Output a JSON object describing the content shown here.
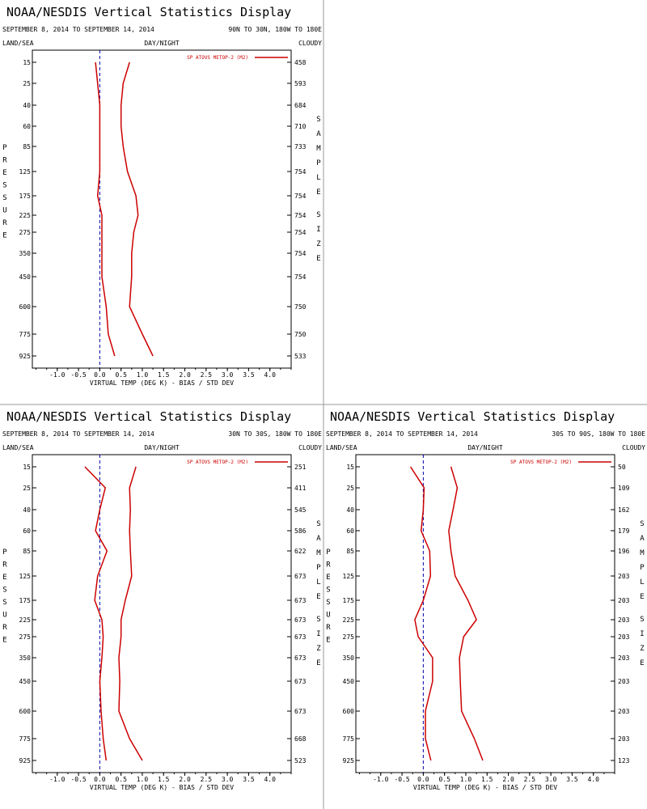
{
  "display_title": "NOAA/NESDIS Vertical Statistics Display",
  "colors": {
    "series": "#cc0000",
    "frame": "#000000",
    "zero_line": "#0000aa",
    "separator": "#999999"
  },
  "chart_data": [
    {
      "type": "line",
      "date_range": "SEPTEMBER 8, 2014 TO SEPTEMBER 14, 2014",
      "region": "90N TO 30N, 180W TO 180E",
      "left_header": "LAND/SEA",
      "center_header": "DAY/NIGHT",
      "right_header": "CLOUDY",
      "left_vertical_label": "PRESSURE",
      "right_vertical_label": "SAMPLE SIZE",
      "xlabel": "VIRTUAL TEMP (DEG K) - BIAS / STD DEV",
      "x_ticks": [
        "-1.0",
        "-0.5",
        "0.0",
        "0.5",
        "1.0",
        "1.5",
        "2.0",
        "2.5",
        "3.0",
        "3.5",
        "4.0"
      ],
      "xlim": [
        -1.5,
        4.5
      ],
      "pressure_levels": [
        "15",
        "25",
        "40",
        "60",
        "85",
        "125",
        "175",
        "225",
        "275",
        "350",
        "450",
        "600",
        "775",
        "925"
      ],
      "sample_sizes": [
        "458",
        "593",
        "684",
        "710",
        "733",
        "754",
        "754",
        "754",
        "754",
        "754",
        "754",
        "750",
        "750",
        "533"
      ],
      "legend": "SP ATOVS METOP-2 (M2)",
      "series": [
        {
          "name": "BIAS",
          "points": [
            [
              -0.1,
              15
            ],
            [
              0.0,
              40
            ],
            [
              0.0,
              125
            ],
            [
              -0.05,
              175
            ],
            [
              0.05,
              225
            ],
            [
              0.05,
              350
            ],
            [
              0.05,
              450
            ],
            [
              0.15,
              600
            ],
            [
              0.2,
              775
            ],
            [
              0.35,
              925
            ]
          ]
        },
        {
          "name": "STD DEV",
          "points": [
            [
              0.7,
              15
            ],
            [
              0.55,
              25
            ],
            [
              0.5,
              40
            ],
            [
              0.5,
              60
            ],
            [
              0.55,
              85
            ],
            [
              0.65,
              125
            ],
            [
              0.85,
              175
            ],
            [
              0.9,
              225
            ],
            [
              0.8,
              275
            ],
            [
              0.75,
              350
            ],
            [
              0.75,
              450
            ],
            [
              0.7,
              600
            ],
            [
              1.0,
              775
            ],
            [
              1.25,
              925
            ]
          ]
        }
      ]
    },
    {
      "type": "line",
      "date_range": "SEPTEMBER 8, 2014 TO SEPTEMBER 14, 2014",
      "region": "30N TO 30S, 180W TO 180E",
      "left_header": "LAND/SEA",
      "center_header": "DAY/NIGHT",
      "right_header": "CLOUDY",
      "left_vertical_label": "PRESSURE",
      "right_vertical_label": "SAMPLE SIZE",
      "xlabel": "VIRTUAL TEMP (DEG K) - BIAS / STD DEV",
      "x_ticks": [
        "-1.0",
        "-0.5",
        "0.0",
        "0.5",
        "1.0",
        "1.5",
        "2.0",
        "2.5",
        "3.0",
        "3.5",
        "4.0"
      ],
      "xlim": [
        -1.5,
        4.5
      ],
      "pressure_levels": [
        "15",
        "25",
        "40",
        "60",
        "85",
        "125",
        "175",
        "225",
        "275",
        "350",
        "450",
        "600",
        "775",
        "925"
      ],
      "sample_sizes": [
        "251",
        "411",
        "545",
        "586",
        "622",
        "673",
        "673",
        "673",
        "673",
        "673",
        "673",
        "673",
        "668",
        "523"
      ],
      "legend": "SP ATOVS METOP-2 (M2)",
      "series": [
        {
          "name": "BIAS",
          "points": [
            [
              -0.35,
              15
            ],
            [
              0.13,
              25
            ],
            [
              0.0,
              40
            ],
            [
              -0.1,
              60
            ],
            [
              0.17,
              85
            ],
            [
              -0.05,
              125
            ],
            [
              -0.12,
              175
            ],
            [
              0.05,
              225
            ],
            [
              0.08,
              275
            ],
            [
              0.05,
              350
            ],
            [
              0.0,
              450
            ],
            [
              0.03,
              600
            ],
            [
              0.08,
              775
            ],
            [
              0.15,
              925
            ]
          ]
        },
        {
          "name": "STD DEV",
          "points": [
            [
              0.85,
              15
            ],
            [
              0.7,
              25
            ],
            [
              0.72,
              40
            ],
            [
              0.7,
              60
            ],
            [
              0.72,
              85
            ],
            [
              0.75,
              125
            ],
            [
              0.6,
              175
            ],
            [
              0.5,
              225
            ],
            [
              0.5,
              275
            ],
            [
              0.45,
              350
            ],
            [
              0.47,
              450
            ],
            [
              0.45,
              600
            ],
            [
              0.7,
              775
            ],
            [
              1.0,
              925
            ]
          ]
        }
      ]
    },
    {
      "type": "line",
      "date_range": "SEPTEMBER 8, 2014 TO SEPTEMBER 14, 2014",
      "region": "30S TO 90S, 180W TO 180E",
      "left_header": "LAND/SEA",
      "center_header": "DAY/NIGHT",
      "right_header": "CLOUDY",
      "left_vertical_label": "PRESSURE",
      "right_vertical_label": "SAMPLE SIZE",
      "xlabel": "VIRTUAL TEMP (DEG K) - BIAS / STD DEV",
      "x_ticks": [
        "-1.0",
        "-0.5",
        "0.0",
        "0.5",
        "1.0",
        "1.5",
        "2.0",
        "2.5",
        "3.0",
        "3.5",
        "4.0"
      ],
      "xlim": [
        -1.5,
        4.5
      ],
      "pressure_levels": [
        "15",
        "25",
        "40",
        "60",
        "85",
        "125",
        "175",
        "225",
        "275",
        "350",
        "450",
        "600",
        "775",
        "925"
      ],
      "sample_sizes": [
        "50",
        "109",
        "162",
        "179",
        "196",
        "203",
        "203",
        "203",
        "203",
        "203",
        "203",
        "203",
        "203",
        "123"
      ],
      "legend": "SP ATOVS METOP-2 (M2)",
      "series": [
        {
          "name": "BIAS",
          "points": [
            [
              -0.3,
              15
            ],
            [
              0.02,
              25
            ],
            [
              0.0,
              40
            ],
            [
              -0.05,
              60
            ],
            [
              0.15,
              85
            ],
            [
              0.17,
              125
            ],
            [
              0.0,
              175
            ],
            [
              -0.2,
              225
            ],
            [
              -0.12,
              275
            ],
            [
              0.22,
              350
            ],
            [
              0.22,
              450
            ],
            [
              0.05,
              600
            ],
            [
              0.05,
              775
            ],
            [
              0.18,
              925
            ]
          ]
        },
        {
          "name": "STD DEV",
          "points": [
            [
              0.65,
              15
            ],
            [
              0.8,
              25
            ],
            [
              0.7,
              40
            ],
            [
              0.6,
              60
            ],
            [
              0.65,
              85
            ],
            [
              0.75,
              125
            ],
            [
              1.05,
              175
            ],
            [
              1.25,
              225
            ],
            [
              0.95,
              275
            ],
            [
              0.85,
              350
            ],
            [
              0.87,
              450
            ],
            [
              0.9,
              600
            ],
            [
              1.2,
              775
            ],
            [
              1.4,
              925
            ]
          ]
        }
      ]
    }
  ]
}
